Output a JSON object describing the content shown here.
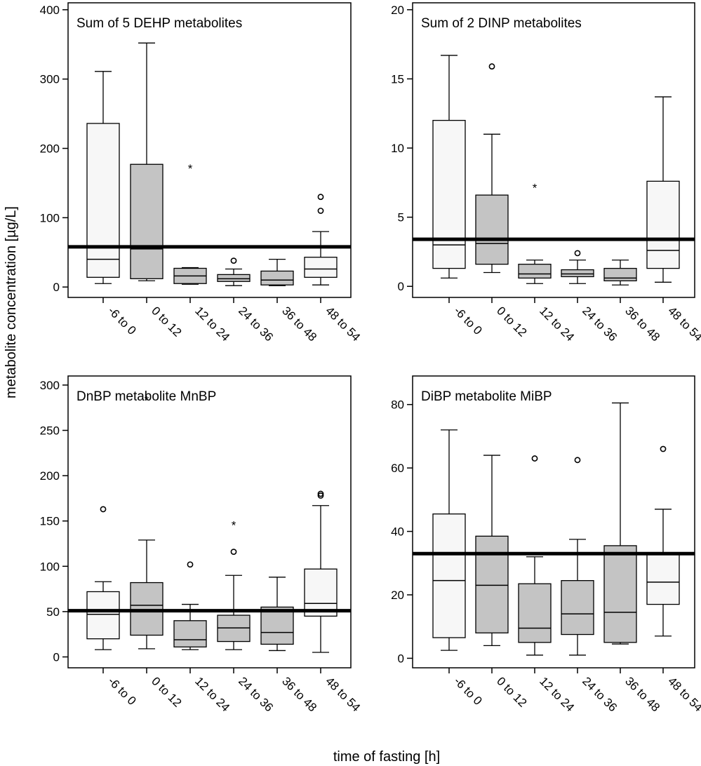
{
  "xlabel": "time of fasting [h]",
  "ylabel": "metabolite concentration [µg/L]",
  "chart_data": [
    {
      "type": "box",
      "title": "Sum of 5 DEHP metabolites",
      "categories": [
        "-6 to 0",
        "0 to 12",
        "12 to 24",
        "24 to 36",
        "36 to 48",
        "48 to 54"
      ],
      "ylim": [
        -15,
        410
      ],
      "yticks": [
        0,
        100,
        200,
        300,
        400
      ],
      "reference_line": 58,
      "boxes": [
        {
          "min": 5,
          "q1": 14,
          "median": 40,
          "q3": 236,
          "max": 311,
          "fill": "#f7f7f7",
          "outliers": [],
          "extremes": []
        },
        {
          "min": 9,
          "q1": 12,
          "median": 55,
          "q3": 177,
          "max": 352,
          "fill": "#c4c4c4",
          "outliers": [],
          "extremes": []
        },
        {
          "min": 4,
          "q1": 5,
          "median": 16,
          "q3": 27,
          "max": 28,
          "fill": "#c4c4c4",
          "outliers": [],
          "extremes": [
            174
          ]
        },
        {
          "min": 2,
          "q1": 8,
          "median": 12,
          "q3": 18,
          "max": 26,
          "fill": "#c4c4c4",
          "outliers": [
            38
          ],
          "extremes": []
        },
        {
          "min": 2,
          "q1": 3,
          "median": 10,
          "q3": 23,
          "max": 40,
          "fill": "#c4c4c4",
          "outliers": [],
          "extremes": []
        },
        {
          "min": 3,
          "q1": 14,
          "median": 26,
          "q3": 43,
          "max": 80,
          "fill": "#f7f7f7",
          "outliers": [
            110,
            130
          ],
          "extremes": []
        }
      ]
    },
    {
      "type": "box",
      "title": "Sum of 2 DINP metabolites",
      "categories": [
        "-6 to 0",
        "0 to 12",
        "12 to 24",
        "24 to 36",
        "36 to 48",
        "48 to 54"
      ],
      "ylim": [
        -0.8,
        20.5
      ],
      "yticks": [
        0,
        5,
        10,
        15,
        20
      ],
      "reference_line": 3.4,
      "boxes": [
        {
          "min": 0.6,
          "q1": 1.3,
          "median": 3.0,
          "q3": 12.0,
          "max": 16.7,
          "fill": "#f7f7f7",
          "outliers": [],
          "extremes": []
        },
        {
          "min": 1.0,
          "q1": 1.6,
          "median": 3.1,
          "q3": 6.6,
          "max": 11.0,
          "fill": "#c4c4c4",
          "outliers": [
            15.9
          ],
          "extremes": []
        },
        {
          "min": 0.2,
          "q1": 0.6,
          "median": 0.9,
          "q3": 1.6,
          "max": 1.9,
          "fill": "#c4c4c4",
          "outliers": [],
          "extremes": [
            7.3
          ]
        },
        {
          "min": 0.2,
          "q1": 0.7,
          "median": 0.9,
          "q3": 1.2,
          "max": 1.9,
          "fill": "#c4c4c4",
          "outliers": [
            2.4
          ],
          "extremes": []
        },
        {
          "min": 0.1,
          "q1": 0.4,
          "median": 0.6,
          "q3": 1.3,
          "max": 1.9,
          "fill": "#c4c4c4",
          "outliers": [],
          "extremes": []
        },
        {
          "min": 0.3,
          "q1": 1.3,
          "median": 2.6,
          "q3": 7.6,
          "max": 13.7,
          "fill": "#f7f7f7",
          "outliers": [],
          "extremes": []
        }
      ]
    },
    {
      "type": "box",
      "title": "DnBP metabolite MnBP",
      "categories": [
        "-6 to 0",
        "0 to 12",
        "12 to 24",
        "24 to 36",
        "36 to 48",
        "48 to 54"
      ],
      "ylim": [
        -12,
        310
      ],
      "yticks": [
        0,
        50,
        100,
        150,
        200,
        250,
        300
      ],
      "reference_line": 51,
      "boxes": [
        {
          "min": 8,
          "q1": 20,
          "median": 47,
          "q3": 72,
          "max": 83,
          "fill": "#f7f7f7",
          "outliers": [
            163
          ],
          "extremes": []
        },
        {
          "min": 9,
          "q1": 24,
          "median": 57,
          "q3": 82,
          "max": 129,
          "fill": "#c4c4c4",
          "outliers": [],
          "extremes": [
            286
          ]
        },
        {
          "min": 8,
          "q1": 11,
          "median": 19,
          "q3": 40,
          "max": 58,
          "fill": "#c4c4c4",
          "outliers": [
            102
          ],
          "extremes": []
        },
        {
          "min": 8,
          "q1": 17,
          "median": 32,
          "q3": 46,
          "max": 90,
          "fill": "#c4c4c4",
          "outliers": [
            116
          ],
          "extremes": [
            148
          ]
        },
        {
          "min": 7,
          "q1": 14,
          "median": 27,
          "q3": 55,
          "max": 88,
          "fill": "#c4c4c4",
          "outliers": [],
          "extremes": []
        },
        {
          "min": 5,
          "q1": 45,
          "median": 59,
          "q3": 97,
          "max": 167,
          "fill": "#f7f7f7",
          "outliers": [
            178,
            180
          ],
          "extremes": []
        }
      ]
    },
    {
      "type": "box",
      "title": "DiBP metabolite MiBP",
      "categories": [
        "-6 to 0",
        "0 to 12",
        "12 to 24",
        "24 to 36",
        "36 to 48",
        "48 to 54"
      ],
      "ylim": [
        -3,
        89
      ],
      "yticks": [
        0,
        20,
        40,
        60,
        80
      ],
      "reference_line": 33,
      "boxes": [
        {
          "min": 2.5,
          "q1": 6.5,
          "median": 24.5,
          "q3": 45.5,
          "max": 72,
          "fill": "#f7f7f7",
          "outliers": [],
          "extremes": []
        },
        {
          "min": 4,
          "q1": 8,
          "median": 23,
          "q3": 38.5,
          "max": 64,
          "fill": "#c4c4c4",
          "outliers": [],
          "extremes": []
        },
        {
          "min": 1,
          "q1": 5,
          "median": 9.5,
          "q3": 23.5,
          "max": 32,
          "fill": "#c4c4c4",
          "outliers": [
            63
          ],
          "extremes": []
        },
        {
          "min": 1,
          "q1": 7.5,
          "median": 14,
          "q3": 24.5,
          "max": 37.5,
          "fill": "#c4c4c4",
          "outliers": [
            62.5
          ],
          "extremes": []
        },
        {
          "min": 4.5,
          "q1": 5,
          "median": 14.5,
          "q3": 35.5,
          "max": 80.5,
          "fill": "#c4c4c4",
          "outliers": [],
          "extremes": []
        },
        {
          "min": 7,
          "q1": 17,
          "median": 24,
          "q3": 33,
          "max": 47,
          "fill": "#f7f7f7",
          "outliers": [
            66
          ],
          "extremes": []
        }
      ]
    }
  ]
}
